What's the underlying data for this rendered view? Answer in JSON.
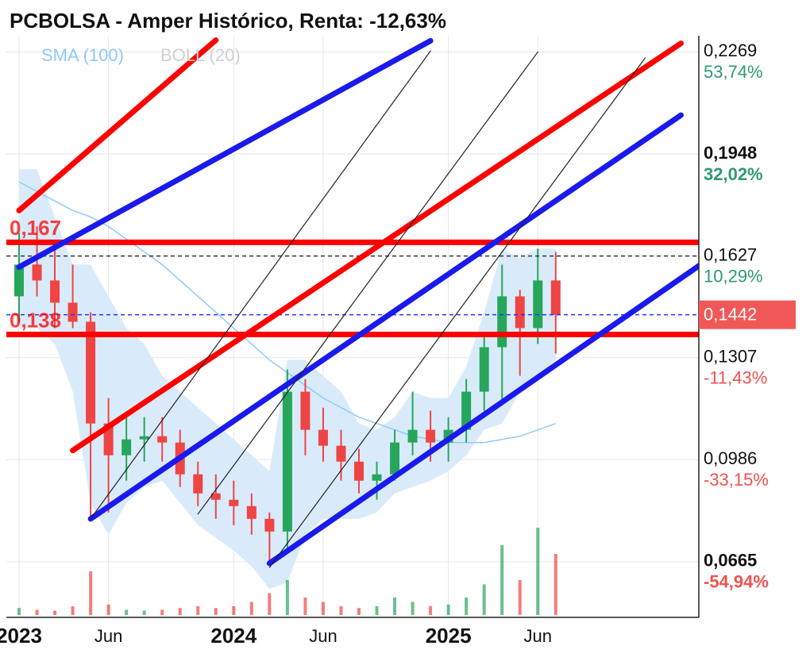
{
  "chart_data": {
    "type": "candlestick",
    "title": "PCBOLSA - Amper Histórico, Renta: -12,63%",
    "x": [
      "2023-01",
      "2023-02",
      "2023-03",
      "2023-04",
      "2023-05",
      "2023-06",
      "2023-07",
      "2023-08",
      "2023-09",
      "2023-10",
      "2023-11",
      "2023-12",
      "2024-01",
      "2024-02",
      "2024-03",
      "2024-04",
      "2024-05",
      "2024-06",
      "2024-07",
      "2024-08",
      "2024-09",
      "2024-10",
      "2024-11",
      "2024-12",
      "2025-01",
      "2025-02",
      "2025-03",
      "2025-04",
      "2025-05",
      "2025-06",
      "2025-07"
    ],
    "open": [
      0.15,
      0.16,
      0.155,
      0.148,
      0.142,
      0.11,
      0.1,
      0.105,
      0.106,
      0.104,
      0.094,
      0.088,
      0.086,
      0.084,
      0.08,
      0.076,
      0.12,
      0.108,
      0.103,
      0.098,
      0.092,
      0.094,
      0.104,
      0.108,
      0.104,
      0.108,
      0.12,
      0.134,
      0.15,
      0.14,
      0.155
    ],
    "high": [
      0.17,
      0.172,
      0.165,
      0.16,
      0.145,
      0.118,
      0.112,
      0.112,
      0.112,
      0.108,
      0.098,
      0.094,
      0.092,
      0.088,
      0.082,
      0.127,
      0.124,
      0.115,
      0.108,
      0.102,
      0.098,
      0.108,
      0.12,
      0.114,
      0.112,
      0.124,
      0.138,
      0.16,
      0.152,
      0.165,
      0.164
    ],
    "low": [
      0.142,
      0.15,
      0.14,
      0.14,
      0.08,
      0.082,
      0.092,
      0.098,
      0.098,
      0.09,
      0.084,
      0.08,
      0.078,
      0.075,
      0.066,
      0.07,
      0.1,
      0.098,
      0.092,
      0.088,
      0.086,
      0.092,
      0.1,
      0.098,
      0.098,
      0.104,
      0.114,
      0.116,
      0.125,
      0.135,
      0.132
    ],
    "close": [
      0.16,
      0.155,
      0.148,
      0.142,
      0.11,
      0.1,
      0.105,
      0.106,
      0.104,
      0.094,
      0.088,
      0.086,
      0.084,
      0.08,
      0.076,
      0.12,
      0.108,
      0.103,
      0.098,
      0.092,
      0.094,
      0.104,
      0.108,
      0.104,
      0.108,
      0.12,
      0.134,
      0.15,
      0.14,
      0.155,
      0.1442
    ],
    "volume": [
      8,
      6,
      5,
      10,
      50,
      12,
      6,
      5,
      6,
      8,
      10,
      8,
      10,
      15,
      25,
      40,
      20,
      15,
      10,
      8,
      10,
      20,
      15,
      10,
      12,
      20,
      35,
      80,
      40,
      100,
      70
    ],
    "up_color": "#26a65b",
    "down_color": "#ef4444",
    "sma": {
      "name": "SMA (100)",
      "color": "#90caf9",
      "values": [
        0.186,
        0.183,
        0.18,
        0.177,
        0.175,
        0.172,
        0.168,
        0.164,
        0.16,
        0.155,
        0.15,
        0.145,
        0.14,
        0.135,
        0.13,
        0.126,
        0.122,
        0.118,
        0.115,
        0.112,
        0.11,
        0.108,
        0.106,
        0.105,
        0.104,
        0.104,
        0.104,
        0.105,
        0.106,
        0.108,
        0.11
      ]
    },
    "boll": {
      "name": "BOLL (20)",
      "color": "#d0d0d0",
      "fill": "#d9ebfa",
      "upper": [
        0.19,
        0.19,
        0.175,
        0.16,
        0.16,
        0.15,
        0.14,
        0.135,
        0.125,
        0.12,
        0.115,
        0.11,
        0.105,
        0.1,
        0.095,
        0.13,
        0.13,
        0.125,
        0.12,
        0.11,
        0.108,
        0.112,
        0.12,
        0.118,
        0.118,
        0.128,
        0.145,
        0.165,
        0.162,
        0.165,
        0.165
      ],
      "lower": [
        0.14,
        0.14,
        0.135,
        0.12,
        0.085,
        0.075,
        0.085,
        0.09,
        0.092,
        0.085,
        0.078,
        0.074,
        0.07,
        0.065,
        0.058,
        0.06,
        0.075,
        0.08,
        0.08,
        0.08,
        0.082,
        0.088,
        0.09,
        0.092,
        0.095,
        0.1,
        0.108,
        0.11,
        0.12,
        0.125,
        0.13
      ]
    },
    "xlim": [
      "2023-01",
      "2026-03"
    ],
    "xticks": [
      {
        "value": "2023-01",
        "label": "2023"
      },
      {
        "value": "2023-06",
        "label": "Jun"
      },
      {
        "value": "2024-01",
        "label": "2024"
      },
      {
        "value": "2024-06",
        "label": "Jun"
      },
      {
        "value": "2025-01",
        "label": "2025"
      },
      {
        "value": "2025-06",
        "label": "Jun"
      }
    ],
    "ylim": [
      0.049,
      0.232
    ],
    "yticks": [
      {
        "value": 0.2269,
        "label": "0,2269"
      },
      {
        "value": 0.1948,
        "label": "0,1948"
      },
      {
        "value": 0.1627,
        "label": "0,1627"
      },
      {
        "value": 0.1307,
        "label": "0,1307"
      },
      {
        "value": 0.0986,
        "label": "0,0986"
      },
      {
        "value": 0.0665,
        "label": "0,0665"
      }
    ],
    "ytick_changes": [
      "53,74%",
      "32,02%",
      "10,29%",
      "-11,43%",
      "-33,15%",
      "-54,94%"
    ],
    "ytick_bold": [
      false,
      true,
      false,
      false,
      false,
      true
    ],
    "grid": true,
    "last_price": {
      "value": 0.1442,
      "label": "0,1442",
      "color": "#f25757"
    },
    "levels": [
      {
        "value": 0.167,
        "label": "0,167",
        "color": "#ff0000",
        "dashed": false
      },
      {
        "value": 0.138,
        "label": "0,138",
        "color": "#ff0000",
        "dashed": false
      },
      {
        "value": 0.1627,
        "color": "#333333",
        "dashed": true
      },
      {
        "value": 0.1442,
        "color": "#2233ff",
        "dashed": true
      }
    ],
    "trendlines": [
      {
        "color": "#ff0000",
        "width": 7,
        "x": [
          "2023-01",
          "2023-12"
        ],
        "y": [
          0.177,
          0.2306
        ]
      },
      {
        "color": "#ff0000",
        "width": 7,
        "x": [
          "2023-04",
          "2026-02"
        ],
        "y": [
          0.1015,
          0.2296
        ]
      },
      {
        "color": "#1a1aee",
        "width": 7,
        "x": [
          "2023-01",
          "2024-12"
        ],
        "y": [
          0.1592,
          0.2304
        ]
      },
      {
        "color": "#1a1aee",
        "width": 7,
        "x": [
          "2023-05",
          "2026-02"
        ],
        "y": [
          0.08,
          0.207
        ]
      },
      {
        "color": "#1a1aee",
        "width": 7,
        "x": [
          "2024-03",
          "2026-03"
        ],
        "y": [
          0.066,
          0.1596
        ]
      },
      {
        "color": "#222222",
        "width": 1.2,
        "x": [
          "2023-05",
          "2024-12"
        ],
        "y": [
          0.08,
          0.2272
        ]
      },
      {
        "color": "#222222",
        "width": 1.2,
        "x": [
          "2023-11",
          "2025-06"
        ],
        "y": [
          0.0815,
          0.2269
        ]
      },
      {
        "color": "#222222",
        "width": 1.2,
        "x": [
          "2024-03",
          "2025-12"
        ],
        "y": [
          0.0647,
          0.225
        ]
      }
    ]
  }
}
